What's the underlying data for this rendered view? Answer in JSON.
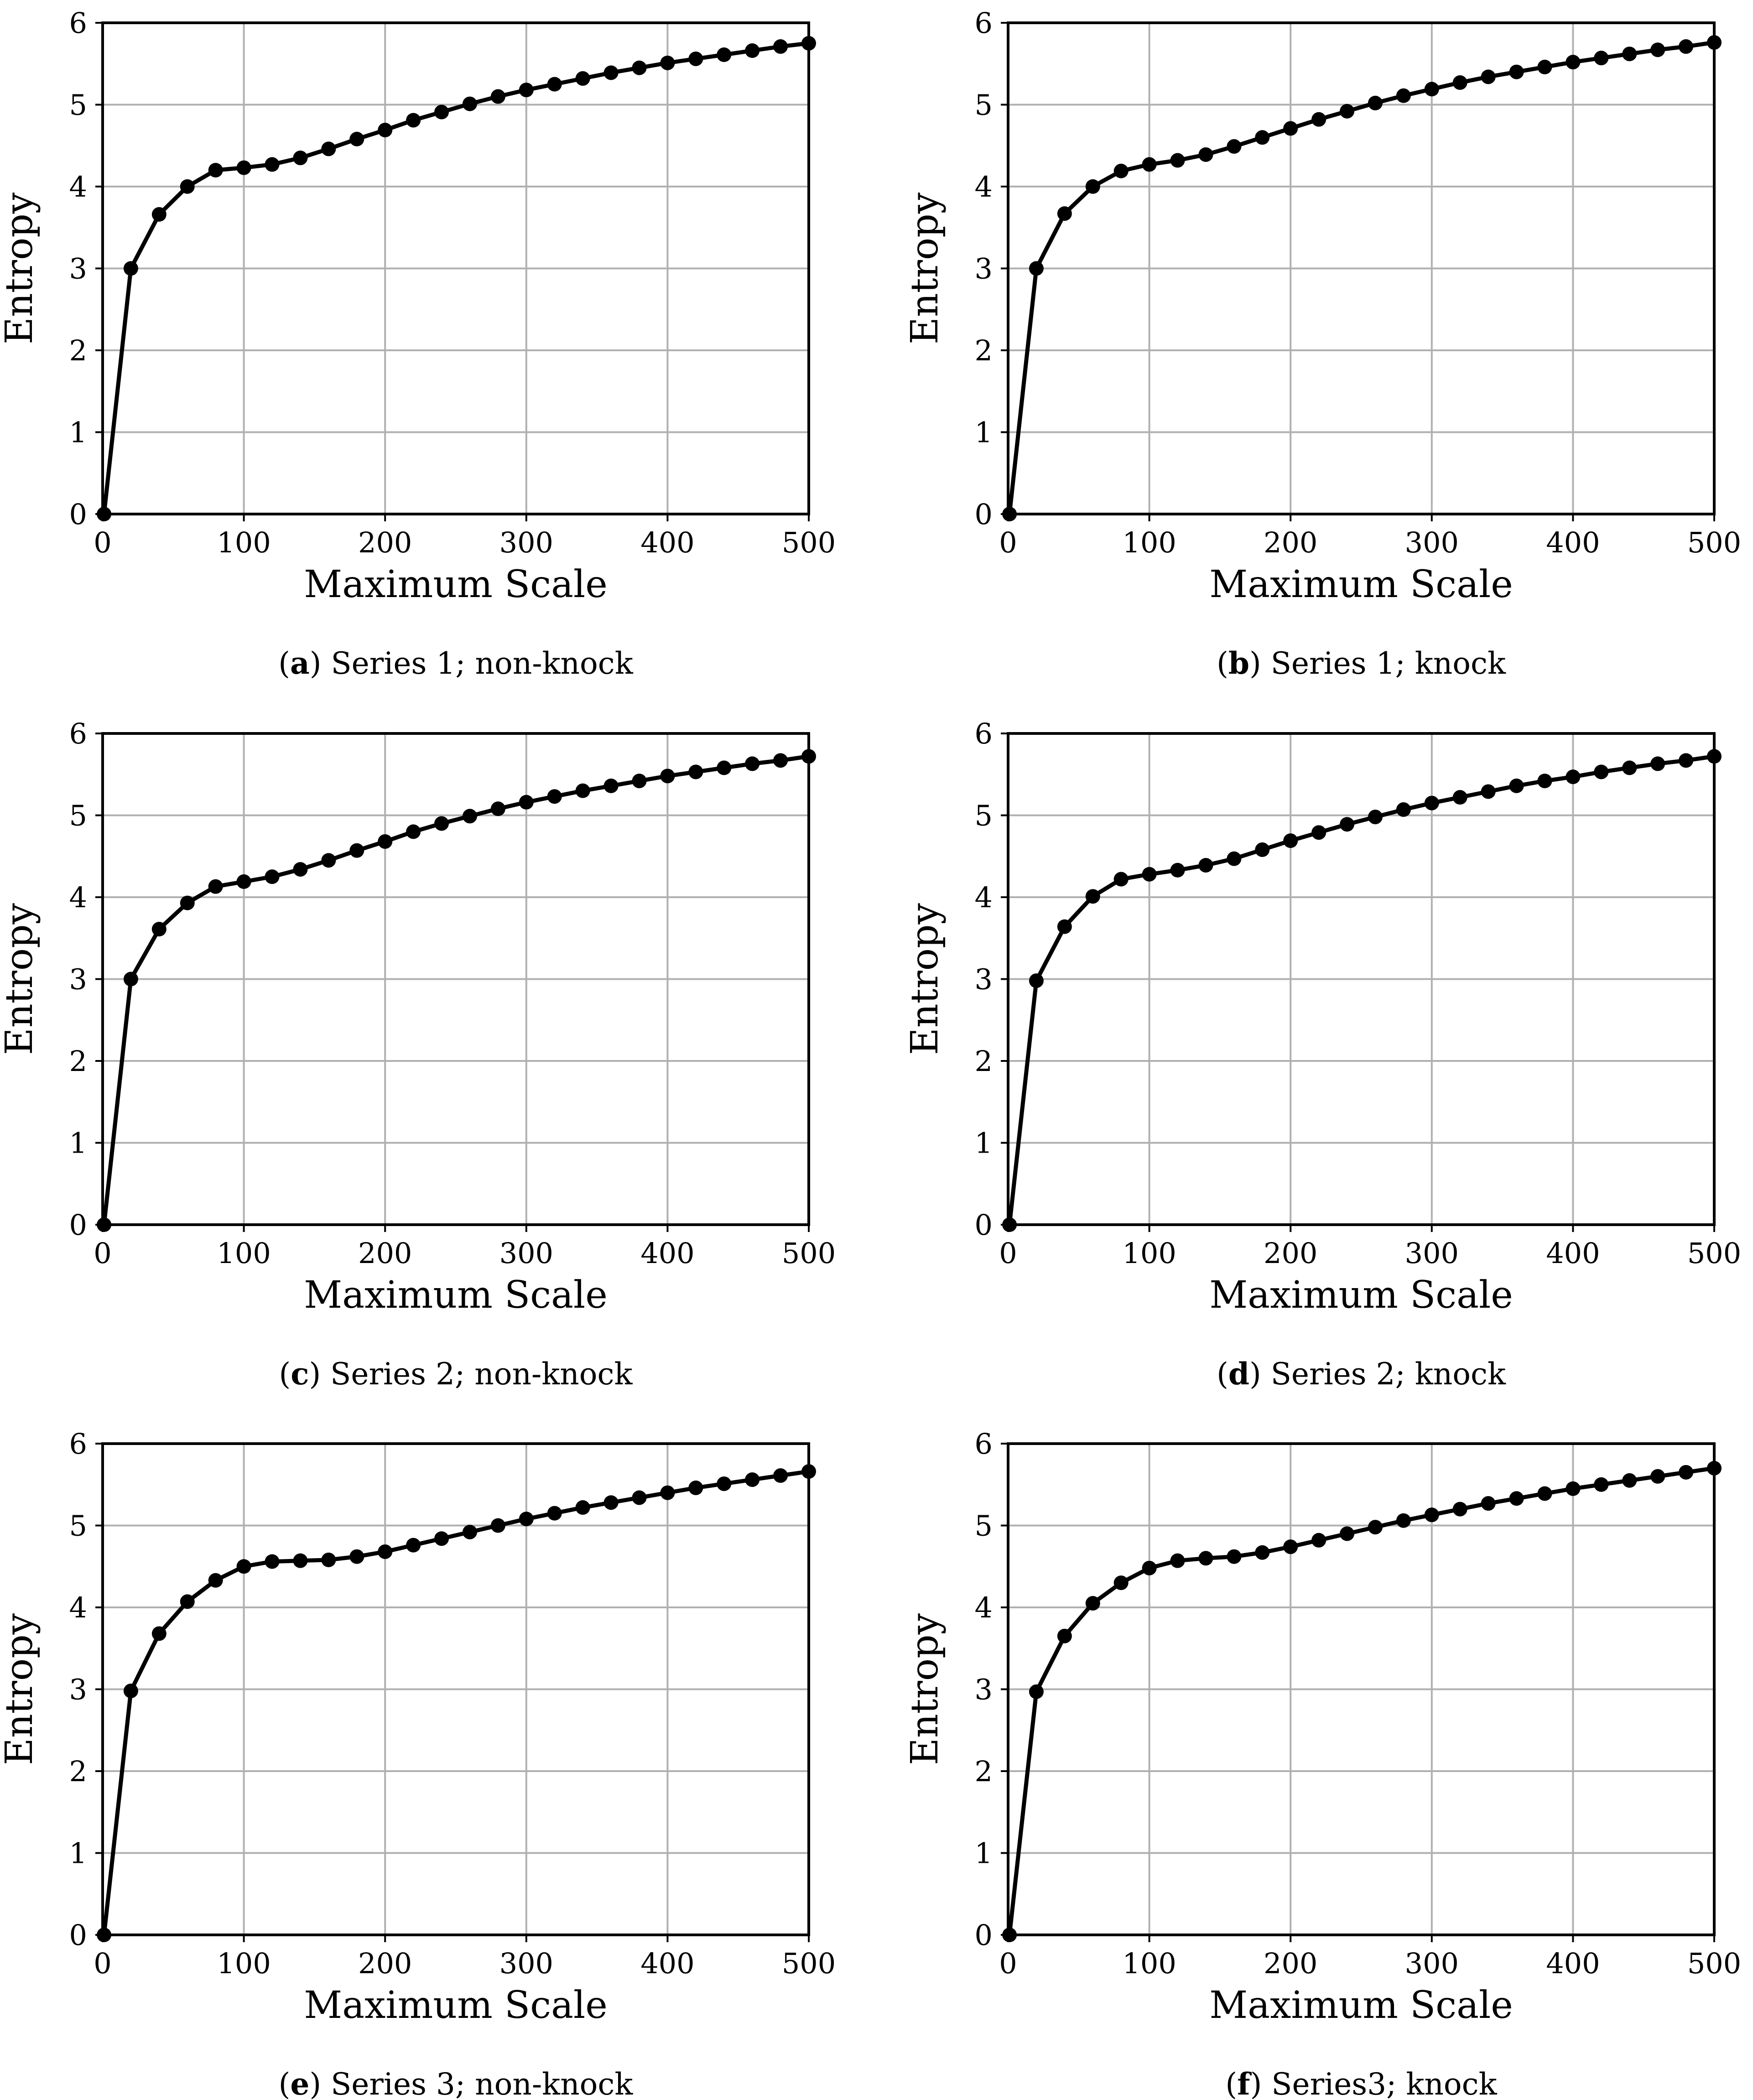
{
  "chart_data": [
    {
      "type": "line",
      "panel": "a",
      "caption_label": "a",
      "caption_text": ") Series 1; non-knock",
      "title": "",
      "xlabel": "Maximum Scale",
      "ylabel": "Entropy",
      "xlim": [
        0,
        500
      ],
      "ylim": [
        0,
        6
      ],
      "xticks": [
        "0",
        "100",
        "200",
        "300",
        "400",
        "500"
      ],
      "yticks": [
        "0",
        "1",
        "2",
        "3",
        "4",
        "5",
        "6"
      ],
      "grid": true,
      "series": [
        {
          "name": "Entropy",
          "x": [
            1,
            20,
            40,
            60,
            80,
            100,
            120,
            140,
            160,
            180,
            200,
            220,
            240,
            260,
            280,
            300,
            320,
            340,
            360,
            380,
            400,
            420,
            440,
            460,
            480,
            500
          ],
          "values": [
            0,
            3.0,
            3.66,
            4.0,
            4.2,
            4.23,
            4.27,
            4.35,
            4.46,
            4.58,
            4.69,
            4.81,
            4.91,
            5.01,
            5.1,
            5.18,
            5.25,
            5.32,
            5.39,
            5.45,
            5.51,
            5.56,
            5.61,
            5.66,
            5.71,
            5.75
          ]
        }
      ]
    },
    {
      "type": "line",
      "panel": "b",
      "caption_label": "b",
      "caption_text": ") Series 1; knock",
      "title": "",
      "xlabel": "Maximum Scale",
      "ylabel": "Entropy",
      "xlim": [
        0,
        500
      ],
      "ylim": [
        0,
        6
      ],
      "xticks": [
        "0",
        "100",
        "200",
        "300",
        "400",
        "500"
      ],
      "yticks": [
        "0",
        "1",
        "2",
        "3",
        "4",
        "5",
        "6"
      ],
      "grid": true,
      "series": [
        {
          "name": "Entropy",
          "x": [
            1,
            20,
            40,
            60,
            80,
            100,
            120,
            140,
            160,
            180,
            200,
            220,
            240,
            260,
            280,
            300,
            320,
            340,
            360,
            380,
            400,
            420,
            440,
            460,
            480,
            500
          ],
          "values": [
            0,
            3.0,
            3.67,
            4.0,
            4.19,
            4.27,
            4.32,
            4.39,
            4.49,
            4.6,
            4.71,
            4.82,
            4.92,
            5.02,
            5.11,
            5.19,
            5.27,
            5.34,
            5.4,
            5.46,
            5.52,
            5.57,
            5.62,
            5.67,
            5.71,
            5.76
          ]
        }
      ]
    },
    {
      "type": "line",
      "panel": "c",
      "caption_label": "c",
      "caption_text": ") Series 2; non-knock",
      "title": "",
      "xlabel": "Maximum Scale",
      "ylabel": "Entropy",
      "xlim": [
        0,
        500
      ],
      "ylim": [
        0,
        6
      ],
      "xticks": [
        "0",
        "100",
        "200",
        "300",
        "400",
        "500"
      ],
      "yticks": [
        "0",
        "1",
        "2",
        "3",
        "4",
        "5",
        "6"
      ],
      "grid": true,
      "series": [
        {
          "name": "Entropy",
          "x": [
            1,
            20,
            40,
            60,
            80,
            100,
            120,
            140,
            160,
            180,
            200,
            220,
            240,
            260,
            280,
            300,
            320,
            340,
            360,
            380,
            400,
            420,
            440,
            460,
            480,
            500
          ],
          "values": [
            0,
            3.0,
            3.61,
            3.93,
            4.13,
            4.19,
            4.25,
            4.34,
            4.45,
            4.57,
            4.68,
            4.8,
            4.9,
            4.99,
            5.08,
            5.16,
            5.23,
            5.3,
            5.36,
            5.42,
            5.48,
            5.53,
            5.58,
            5.63,
            5.67,
            5.72
          ]
        }
      ]
    },
    {
      "type": "line",
      "panel": "d",
      "caption_label": "d",
      "caption_text": ") Series 2; knock",
      "title": "",
      "xlabel": "Maximum Scale",
      "ylabel": "Entropy",
      "xlim": [
        0,
        500
      ],
      "ylim": [
        0,
        6
      ],
      "xticks": [
        "0",
        "100",
        "200",
        "300",
        "400",
        "500"
      ],
      "yticks": [
        "0",
        "1",
        "2",
        "3",
        "4",
        "5",
        "6"
      ],
      "grid": true,
      "series": [
        {
          "name": "Entropy",
          "x": [
            1,
            20,
            40,
            60,
            80,
            100,
            120,
            140,
            160,
            180,
            200,
            220,
            240,
            260,
            280,
            300,
            320,
            340,
            360,
            380,
            400,
            420,
            440,
            460,
            480,
            500
          ],
          "values": [
            0,
            2.98,
            3.64,
            4.01,
            4.22,
            4.28,
            4.33,
            4.39,
            4.47,
            4.58,
            4.69,
            4.79,
            4.89,
            4.98,
            5.07,
            5.15,
            5.22,
            5.29,
            5.36,
            5.42,
            5.47,
            5.53,
            5.58,
            5.63,
            5.67,
            5.72
          ]
        }
      ]
    },
    {
      "type": "line",
      "panel": "e",
      "caption_label": "e",
      "caption_text": ") Series 3; non-knock",
      "title": "",
      "xlabel": "Maximum Scale",
      "ylabel": "Entropy",
      "xlim": [
        0,
        500
      ],
      "ylim": [
        0,
        6
      ],
      "xticks": [
        "0",
        "100",
        "200",
        "300",
        "400",
        "500"
      ],
      "yticks": [
        "0",
        "1",
        "2",
        "3",
        "4",
        "5",
        "6"
      ],
      "grid": true,
      "series": [
        {
          "name": "Entropy",
          "x": [
            1,
            20,
            40,
            60,
            80,
            100,
            120,
            140,
            160,
            180,
            200,
            220,
            240,
            260,
            280,
            300,
            320,
            340,
            360,
            380,
            400,
            420,
            440,
            460,
            480,
            500
          ],
          "values": [
            0,
            2.98,
            3.68,
            4.07,
            4.33,
            4.5,
            4.56,
            4.57,
            4.58,
            4.62,
            4.68,
            4.76,
            4.84,
            4.92,
            5.0,
            5.08,
            5.15,
            5.22,
            5.28,
            5.34,
            5.4,
            5.46,
            5.51,
            5.56,
            5.61,
            5.66
          ]
        }
      ]
    },
    {
      "type": "line",
      "panel": "f",
      "caption_label": "f",
      "caption_text": ") Series3; knock",
      "title": "",
      "xlabel": "Maximum Scale",
      "ylabel": "Entropy",
      "xlim": [
        0,
        500
      ],
      "ylim": [
        0,
        6
      ],
      "xticks": [
        "0",
        "100",
        "200",
        "300",
        "400",
        "500"
      ],
      "yticks": [
        "0",
        "1",
        "2",
        "3",
        "4",
        "5",
        "6"
      ],
      "grid": true,
      "series": [
        {
          "name": "Entropy",
          "x": [
            1,
            20,
            40,
            60,
            80,
            100,
            120,
            140,
            160,
            180,
            200,
            220,
            240,
            260,
            280,
            300,
            320,
            340,
            360,
            380,
            400,
            420,
            440,
            460,
            480,
            500
          ],
          "values": [
            0,
            2.97,
            3.65,
            4.05,
            4.3,
            4.48,
            4.57,
            4.6,
            4.62,
            4.67,
            4.74,
            4.82,
            4.9,
            4.98,
            5.06,
            5.13,
            5.2,
            5.27,
            5.33,
            5.39,
            5.45,
            5.5,
            5.55,
            5.6,
            5.65,
            5.7
          ]
        }
      ]
    }
  ]
}
